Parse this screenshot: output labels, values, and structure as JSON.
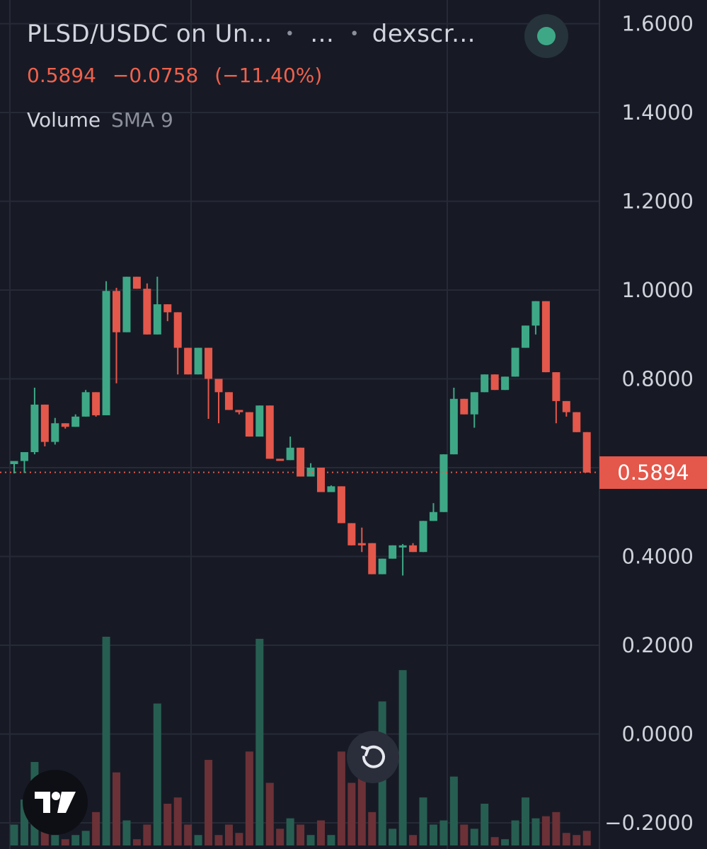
{
  "header": {
    "pair": "PLSD/USDC on Un...",
    "sep1": "•",
    "ellipsis": "...",
    "sep2": "•",
    "source": "dexscr...",
    "status_icon": "live-status-dot"
  },
  "quote": {
    "last": "0.5894",
    "change": "−0.0758",
    "change_pct": "(−11.40%)"
  },
  "indicator": {
    "name": "Volume",
    "params": "SMA 9"
  },
  "last_price_label": "0.5894",
  "colors": {
    "background": "#171a25",
    "grid": "#262a36",
    "up": "#3ea886",
    "down": "#e4574b",
    "up_volume": "#275e52",
    "down_volume": "#6b3137",
    "axis_text": "#cfd2d9"
  },
  "icons": {
    "reset": "reset-icon",
    "logo": "tradingview-logo-icon"
  },
  "chart_data": {
    "type": "candlestick",
    "ylim": [
      -0.23,
      1.65
    ],
    "y_ticks": [
      "1.6000",
      "1.4000",
      "1.2000",
      "1.0000",
      "0.8000",
      "0.4000",
      "0.2000",
      "0.0000",
      "−0.2000"
    ],
    "y_tick_values": [
      1.6,
      1.4,
      1.2,
      1.0,
      0.8,
      0.4,
      0.2,
      0.0,
      -0.2
    ],
    "last_price": 0.5894,
    "grid": true,
    "candles": [
      {
        "o": 0.608,
        "h": 0.612,
        "l": 0.587,
        "c": 0.615,
        "dir": "up"
      },
      {
        "o": 0.615,
        "h": 0.624,
        "l": 0.588,
        "c": 0.635,
        "dir": "up"
      },
      {
        "o": 0.635,
        "h": 0.78,
        "l": 0.63,
        "c": 0.742,
        "dir": "up"
      },
      {
        "o": 0.742,
        "h": 0.742,
        "l": 0.648,
        "c": 0.658,
        "dir": "down"
      },
      {
        "o": 0.658,
        "h": 0.712,
        "l": 0.652,
        "c": 0.7,
        "dir": "up"
      },
      {
        "o": 0.7,
        "h": 0.7,
        "l": 0.688,
        "c": 0.692,
        "dir": "down"
      },
      {
        "o": 0.692,
        "h": 0.72,
        "l": 0.692,
        "c": 0.715,
        "dir": "up"
      },
      {
        "o": 0.715,
        "h": 0.775,
        "l": 0.715,
        "c": 0.77,
        "dir": "up"
      },
      {
        "o": 0.77,
        "h": 0.77,
        "l": 0.715,
        "c": 0.718,
        "dir": "down"
      },
      {
        "o": 0.718,
        "h": 1.02,
        "l": 0.718,
        "c": 0.998,
        "dir": "up"
      },
      {
        "o": 0.998,
        "h": 1.005,
        "l": 0.79,
        "c": 0.905,
        "dir": "down"
      },
      {
        "o": 0.905,
        "h": 1.03,
        "l": 0.905,
        "c": 1.03,
        "dir": "up"
      },
      {
        "o": 1.03,
        "h": 1.03,
        "l": 1.003,
        "c": 1.003,
        "dir": "down"
      },
      {
        "o": 1.003,
        "h": 1.015,
        "l": 0.9,
        "c": 0.9,
        "dir": "down"
      },
      {
        "o": 0.9,
        "h": 1.03,
        "l": 0.9,
        "c": 0.968,
        "dir": "up"
      },
      {
        "o": 0.968,
        "h": 0.968,
        "l": 0.93,
        "c": 0.95,
        "dir": "down"
      },
      {
        "o": 0.95,
        "h": 0.95,
        "l": 0.81,
        "c": 0.87,
        "dir": "down"
      },
      {
        "o": 0.87,
        "h": 0.87,
        "l": 0.81,
        "c": 0.81,
        "dir": "down"
      },
      {
        "o": 0.81,
        "h": 0.87,
        "l": 0.81,
        "c": 0.87,
        "dir": "up"
      },
      {
        "o": 0.87,
        "h": 0.87,
        "l": 0.71,
        "c": 0.8,
        "dir": "down"
      },
      {
        "o": 0.8,
        "h": 0.8,
        "l": 0.7,
        "c": 0.77,
        "dir": "down"
      },
      {
        "o": 0.77,
        "h": 0.77,
        "l": 0.73,
        "c": 0.73,
        "dir": "down"
      },
      {
        "o": 0.73,
        "h": 0.73,
        "l": 0.72,
        "c": 0.725,
        "dir": "down"
      },
      {
        "o": 0.725,
        "h": 0.725,
        "l": 0.67,
        "c": 0.67,
        "dir": "down"
      },
      {
        "o": 0.67,
        "h": 0.74,
        "l": 0.67,
        "c": 0.74,
        "dir": "up"
      },
      {
        "o": 0.74,
        "h": 0.74,
        "l": 0.62,
        "c": 0.62,
        "dir": "down"
      },
      {
        "o": 0.62,
        "h": 0.62,
        "l": 0.617,
        "c": 0.617,
        "dir": "down"
      },
      {
        "o": 0.617,
        "h": 0.67,
        "l": 0.617,
        "c": 0.645,
        "dir": "up"
      },
      {
        "o": 0.645,
        "h": 0.645,
        "l": 0.58,
        "c": 0.58,
        "dir": "down"
      },
      {
        "o": 0.58,
        "h": 0.61,
        "l": 0.58,
        "c": 0.6,
        "dir": "up"
      },
      {
        "o": 0.6,
        "h": 0.6,
        "l": 0.545,
        "c": 0.545,
        "dir": "down"
      },
      {
        "o": 0.545,
        "h": 0.56,
        "l": 0.545,
        "c": 0.558,
        "dir": "up"
      },
      {
        "o": 0.558,
        "h": 0.558,
        "l": 0.475,
        "c": 0.475,
        "dir": "down"
      },
      {
        "o": 0.475,
        "h": 0.475,
        "l": 0.425,
        "c": 0.425,
        "dir": "down"
      },
      {
        "o": 0.425,
        "h": 0.465,
        "l": 0.41,
        "c": 0.43,
        "dir": "down"
      },
      {
        "o": 0.43,
        "h": 0.43,
        "l": 0.36,
        "c": 0.36,
        "dir": "down"
      },
      {
        "o": 0.36,
        "h": 0.395,
        "l": 0.36,
        "c": 0.395,
        "dir": "up"
      },
      {
        "o": 0.395,
        "h": 0.425,
        "l": 0.395,
        "c": 0.425,
        "dir": "up"
      },
      {
        "o": 0.425,
        "h": 0.428,
        "l": 0.357,
        "c": 0.425,
        "dir": "up"
      },
      {
        "o": 0.425,
        "h": 0.43,
        "l": 0.41,
        "c": 0.41,
        "dir": "down"
      },
      {
        "o": 0.41,
        "h": 0.48,
        "l": 0.41,
        "c": 0.48,
        "dir": "up"
      },
      {
        "o": 0.48,
        "h": 0.52,
        "l": 0.48,
        "c": 0.5,
        "dir": "up"
      },
      {
        "o": 0.5,
        "h": 0.63,
        "l": 0.5,
        "c": 0.63,
        "dir": "up"
      },
      {
        "o": 0.63,
        "h": 0.78,
        "l": 0.63,
        "c": 0.755,
        "dir": "up"
      },
      {
        "o": 0.755,
        "h": 0.755,
        "l": 0.72,
        "c": 0.72,
        "dir": "down"
      },
      {
        "o": 0.72,
        "h": 0.77,
        "l": 0.69,
        "c": 0.77,
        "dir": "up"
      },
      {
        "o": 0.77,
        "h": 0.81,
        "l": 0.77,
        "c": 0.81,
        "dir": "up"
      },
      {
        "o": 0.81,
        "h": 0.81,
        "l": 0.775,
        "c": 0.775,
        "dir": "down"
      },
      {
        "o": 0.775,
        "h": 0.805,
        "l": 0.775,
        "c": 0.805,
        "dir": "up"
      },
      {
        "o": 0.805,
        "h": 0.87,
        "l": 0.805,
        "c": 0.87,
        "dir": "up"
      },
      {
        "o": 0.87,
        "h": 0.92,
        "l": 0.87,
        "c": 0.92,
        "dir": "up"
      },
      {
        "o": 0.92,
        "h": 0.975,
        "l": 0.9,
        "c": 0.975,
        "dir": "up"
      },
      {
        "o": 0.975,
        "h": 0.975,
        "l": 0.815,
        "c": 0.815,
        "dir": "down"
      },
      {
        "o": 0.815,
        "h": 0.815,
        "l": 0.7,
        "c": 0.75,
        "dir": "down"
      },
      {
        "o": 0.75,
        "h": 0.75,
        "l": 0.715,
        "c": 0.725,
        "dir": "down"
      },
      {
        "o": 0.725,
        "h": 0.725,
        "l": 0.68,
        "c": 0.68,
        "dir": "down"
      },
      {
        "o": 0.68,
        "h": 0.68,
        "l": 0.589,
        "c": 0.589,
        "dir": "down"
      }
    ],
    "volume": [
      {
        "v": 0.1,
        "dir": "up"
      },
      {
        "v": 0.22,
        "dir": "up"
      },
      {
        "v": 0.4,
        "dir": "up"
      },
      {
        "v": 0.28,
        "dir": "down"
      },
      {
        "v": 0.05,
        "dir": "up"
      },
      {
        "v": 0.03,
        "dir": "down"
      },
      {
        "v": 0.05,
        "dir": "up"
      },
      {
        "v": 0.07,
        "dir": "up"
      },
      {
        "v": 0.16,
        "dir": "down"
      },
      {
        "v": 1.0,
        "dir": "up"
      },
      {
        "v": 0.35,
        "dir": "down"
      },
      {
        "v": 0.12,
        "dir": "up"
      },
      {
        "v": 0.03,
        "dir": "down"
      },
      {
        "v": 0.1,
        "dir": "down"
      },
      {
        "v": 0.68,
        "dir": "up"
      },
      {
        "v": 0.2,
        "dir": "down"
      },
      {
        "v": 0.23,
        "dir": "down"
      },
      {
        "v": 0.1,
        "dir": "down"
      },
      {
        "v": 0.05,
        "dir": "up"
      },
      {
        "v": 0.41,
        "dir": "down"
      },
      {
        "v": 0.05,
        "dir": "down"
      },
      {
        "v": 0.1,
        "dir": "down"
      },
      {
        "v": 0.06,
        "dir": "down"
      },
      {
        "v": 0.45,
        "dir": "down"
      },
      {
        "v": 0.99,
        "dir": "up"
      },
      {
        "v": 0.3,
        "dir": "down"
      },
      {
        "v": 0.08,
        "dir": "down"
      },
      {
        "v": 0.13,
        "dir": "up"
      },
      {
        "v": 0.1,
        "dir": "down"
      },
      {
        "v": 0.05,
        "dir": "up"
      },
      {
        "v": 0.12,
        "dir": "down"
      },
      {
        "v": 0.05,
        "dir": "up"
      },
      {
        "v": 0.45,
        "dir": "down"
      },
      {
        "v": 0.3,
        "dir": "down"
      },
      {
        "v": 0.34,
        "dir": "down"
      },
      {
        "v": 0.16,
        "dir": "down"
      },
      {
        "v": 0.69,
        "dir": "up"
      },
      {
        "v": 0.08,
        "dir": "up"
      },
      {
        "v": 0.84,
        "dir": "up"
      },
      {
        "v": 0.05,
        "dir": "down"
      },
      {
        "v": 0.23,
        "dir": "up"
      },
      {
        "v": 0.1,
        "dir": "up"
      },
      {
        "v": 0.12,
        "dir": "up"
      },
      {
        "v": 0.33,
        "dir": "up"
      },
      {
        "v": 0.1,
        "dir": "down"
      },
      {
        "v": 0.08,
        "dir": "up"
      },
      {
        "v": 0.2,
        "dir": "up"
      },
      {
        "v": 0.04,
        "dir": "down"
      },
      {
        "v": 0.03,
        "dir": "up"
      },
      {
        "v": 0.12,
        "dir": "up"
      },
      {
        "v": 0.23,
        "dir": "up"
      },
      {
        "v": 0.13,
        "dir": "up"
      },
      {
        "v": 0.14,
        "dir": "down"
      },
      {
        "v": 0.16,
        "dir": "down"
      },
      {
        "v": 0.06,
        "dir": "down"
      },
      {
        "v": 0.05,
        "dir": "down"
      },
      {
        "v": 0.07,
        "dir": "down"
      }
    ]
  }
}
